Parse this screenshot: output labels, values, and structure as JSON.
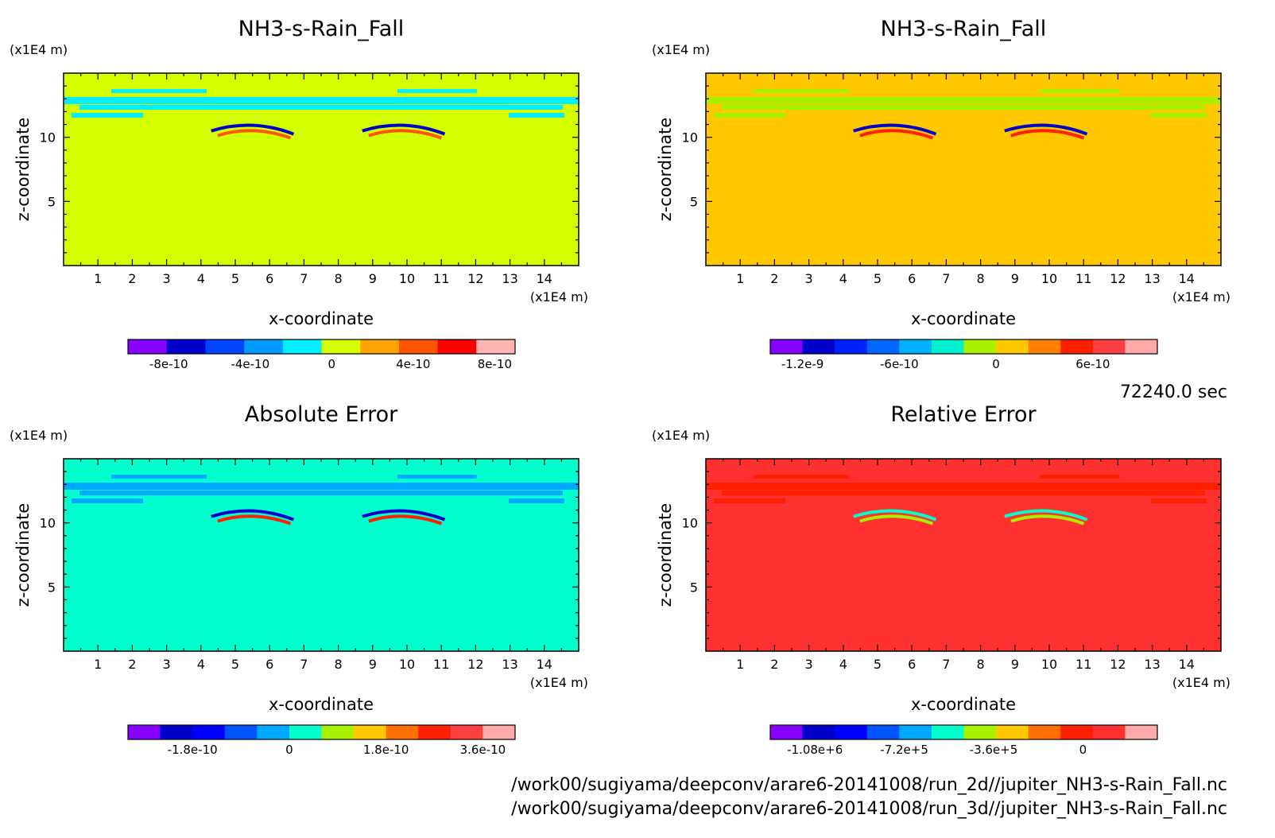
{
  "time_label": "72240.0 sec",
  "source_files": [
    "/work00/sugiyama/deepconv/arare6-20141008/run_2d//jupiter_NH3-s-Rain_Fall.nc",
    "/work00/sugiyama/deepconv/arare6-20141008/run_3d//jupiter_NH3-s-Rain_Fall.nc"
  ],
  "chart_data": [
    {
      "type": "heatmap",
      "title": "NH3-s-Rain_Fall",
      "xlabel": "x-coordinate",
      "ylabel": "z-coordinate",
      "x_unit": "(x1E4 m)",
      "y_unit": "(x1E4 m)",
      "xlim": [
        0,
        15
      ],
      "ylim": [
        0,
        15
      ],
      "xticks": [
        "1",
        "2",
        "3",
        "4",
        "5",
        "6",
        "7",
        "8",
        "9",
        "10",
        "11",
        "12",
        "13",
        "14"
      ],
      "yticks": [
        "5",
        "10"
      ],
      "background_color": "#d4ff00",
      "layer_color": "#00f0ff",
      "colorbar": {
        "colors": [
          "#8800ff",
          "#0000cc",
          "#0044ff",
          "#0099ff",
          "#00f0ff",
          "#d4ff00",
          "#ffa500",
          "#ff5500",
          "#ff0000",
          "#ffb3b3"
        ],
        "ticks": [
          "-8e-10",
          "-4e-10",
          "0",
          "4e-10",
          "8e-10"
        ],
        "tick_values": [
          -8e-10,
          -4e-10,
          0,
          4e-10,
          8e-10
        ],
        "range": [
          -1e-09,
          9e-10
        ]
      }
    },
    {
      "type": "heatmap",
      "title": "NH3-s-Rain_Fall",
      "xlabel": "x-coordinate",
      "ylabel": "z-coordinate",
      "x_unit": "(x1E4 m)",
      "y_unit": "(x1E4 m)",
      "xlim": [
        0,
        15
      ],
      "ylim": [
        0,
        15
      ],
      "xticks": [
        "1",
        "2",
        "3",
        "4",
        "5",
        "6",
        "7",
        "8",
        "9",
        "10",
        "11",
        "12",
        "13",
        "14"
      ],
      "yticks": [
        "5",
        "10"
      ],
      "background_color": "#ffc800",
      "layer_color": "#a8f000",
      "colorbar": {
        "colors": [
          "#8800ff",
          "#0000cc",
          "#0022ff",
          "#0066ff",
          "#00b0ff",
          "#00f0d0",
          "#a8f000",
          "#ffc800",
          "#ff8000",
          "#ff2000",
          "#ff4040",
          "#ffaaaa"
        ],
        "ticks": [
          "-1.2e-9",
          "-6e-10",
          "0",
          "6e-10"
        ],
        "tick_values": [
          -1.2e-09,
          -6e-10,
          0,
          6e-10
        ],
        "range": [
          -1.4e-09,
          1e-09
        ]
      }
    },
    {
      "type": "heatmap",
      "title": "Absolute Error",
      "xlabel": "x-coordinate",
      "ylabel": "z-coordinate",
      "x_unit": "(x1E4 m)",
      "y_unit": "(x1E4 m)",
      "xlim": [
        0,
        15
      ],
      "ylim": [
        0,
        15
      ],
      "xticks": [
        "1",
        "2",
        "3",
        "4",
        "5",
        "6",
        "7",
        "8",
        "9",
        "10",
        "11",
        "12",
        "13",
        "14"
      ],
      "yticks": [
        "5",
        "10"
      ],
      "background_color": "#00ffcc",
      "layer_color": "#00a8ff",
      "colorbar": {
        "colors": [
          "#8800ff",
          "#0000cc",
          "#0000ff",
          "#0055ff",
          "#00a8ff",
          "#00ffcc",
          "#a8f000",
          "#ffc800",
          "#ff7000",
          "#ff2000",
          "#ff4040",
          "#ffaaaa"
        ],
        "ticks": [
          "-1.8e-10",
          "0",
          "1.8e-10",
          "3.6e-10"
        ],
        "tick_values": [
          -1.8e-10,
          0,
          1.8e-10,
          3.6e-10
        ],
        "range": [
          -3e-10,
          4.2e-10
        ]
      }
    },
    {
      "type": "heatmap",
      "title": "Relative Error",
      "xlabel": "x-coordinate",
      "ylabel": "z-coordinate",
      "x_unit": "(x1E4 m)",
      "y_unit": "(x1E4 m)",
      "xlim": [
        0,
        15
      ],
      "ylim": [
        0,
        15
      ],
      "xticks": [
        "1",
        "2",
        "3",
        "4",
        "5",
        "6",
        "7",
        "8",
        "9",
        "10",
        "11",
        "12",
        "13",
        "14"
      ],
      "yticks": [
        "5",
        "10"
      ],
      "background_color": "#ff3030",
      "layer_color": "#ff2000",
      "colorbar": {
        "colors": [
          "#8800ff",
          "#0000cc",
          "#0000ff",
          "#0055ff",
          "#00a8ff",
          "#00ffcc",
          "#a8f000",
          "#ffc800",
          "#ff7000",
          "#ff2000",
          "#ff3030",
          "#ffaaaa"
        ],
        "ticks": [
          "-1.08e+6",
          "-7.2e+5",
          "-3.6e+5",
          "0"
        ],
        "tick_values": [
          -1080000,
          -720000,
          -360000,
          0
        ],
        "range": [
          -1260000,
          300000
        ]
      }
    }
  ]
}
